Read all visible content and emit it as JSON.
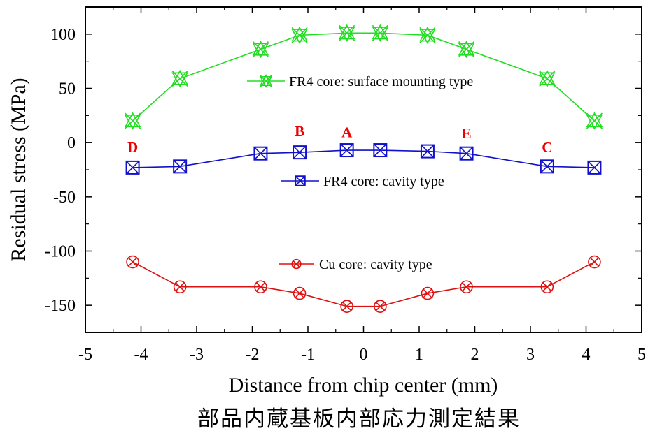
{
  "chart_data": {
    "type": "line",
    "title": "",
    "caption": "部品内蔵基板内部応力測定結果",
    "xlabel": "Distance from chip center (mm)",
    "ylabel": "Residual stress (MPa)",
    "xlim": [
      -5,
      5
    ],
    "ylim": [
      -175,
      125
    ],
    "x_ticks": [
      -5,
      -4,
      -3,
      -2,
      -1,
      0,
      1,
      2,
      3,
      4,
      5
    ],
    "y_ticks": [
      100,
      50,
      0,
      -50,
      -100,
      -150
    ],
    "grid": false,
    "series": [
      {
        "name": "FR4 core: surface mounting type",
        "color": "#22dd22",
        "marker": "star-x",
        "x": [
          -4.15,
          -3.3,
          -1.85,
          -1.15,
          -0.3,
          0.3,
          1.15,
          1.85,
          3.3,
          4.15
        ],
        "y": [
          20,
          59,
          86,
          99,
          101,
          101,
          99,
          86,
          59,
          20
        ]
      },
      {
        "name": "FR4 core: cavity type",
        "color": "#1111cc",
        "marker": "square-x",
        "x": [
          -4.15,
          -3.3,
          -1.85,
          -1.15,
          -0.3,
          0.3,
          1.15,
          1.85,
          3.3,
          4.15
        ],
        "y": [
          -23,
          -22,
          -10,
          -9,
          -7,
          -7,
          -8,
          -10,
          -22,
          -23
        ]
      },
      {
        "name": "Cu core: cavity type",
        "color": "#dd1111",
        "marker": "circle-x",
        "x": [
          -4.15,
          -3.3,
          -1.85,
          -1.15,
          -0.3,
          0.3,
          1.15,
          1.85,
          3.3,
          4.15
        ],
        "y": [
          -110,
          -133,
          -133,
          -139,
          -151,
          -151,
          -139,
          -133,
          -133,
          -110
        ]
      }
    ],
    "annotations": [
      {
        "text": "D",
        "x": -4.15,
        "y": -9,
        "color": "#ee0000"
      },
      {
        "text": "B",
        "x": -1.15,
        "y": 6,
        "color": "#ee0000"
      },
      {
        "text": "A",
        "x": -0.3,
        "y": 5,
        "color": "#ee0000"
      },
      {
        "text": "E",
        "x": 1.85,
        "y": 4,
        "color": "#ee0000"
      },
      {
        "text": "C",
        "x": 3.3,
        "y": -9,
        "color": "#ee0000"
      }
    ],
    "legend_placement": "inline-labels"
  }
}
